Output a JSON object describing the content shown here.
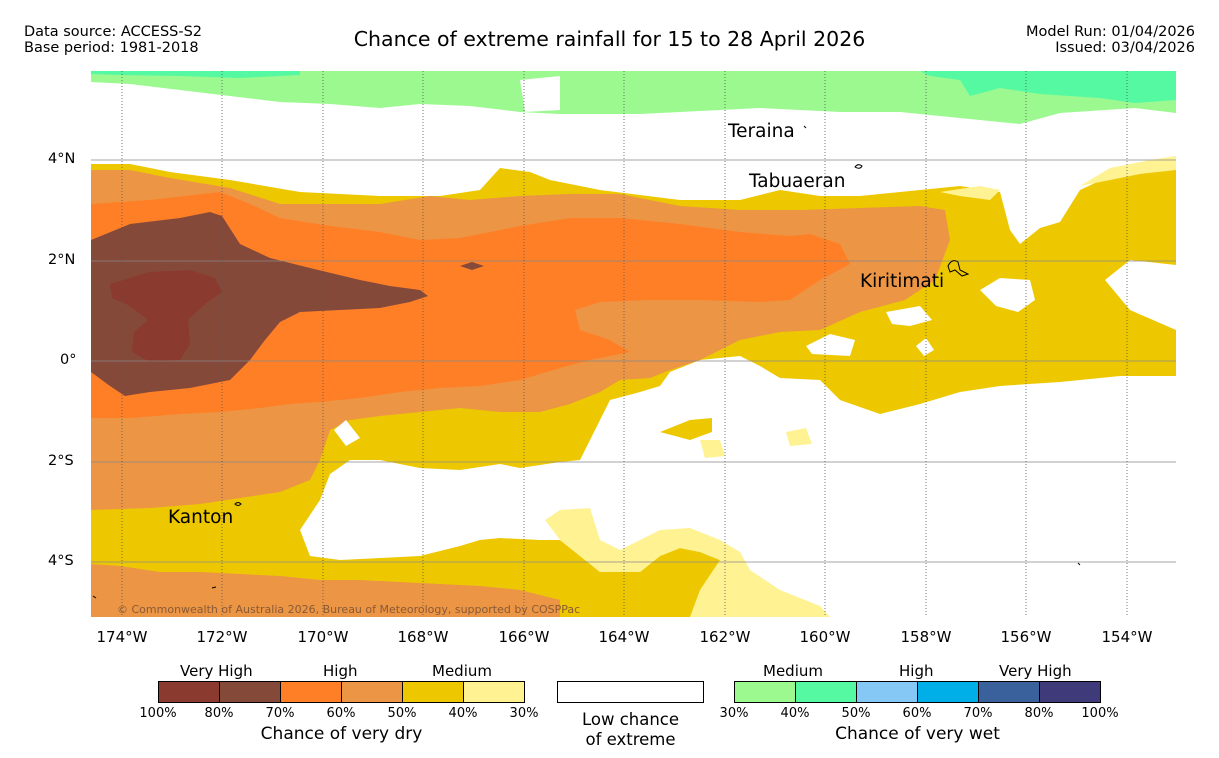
{
  "header": {
    "data_source": "Data source: ACCESS-S2",
    "base_period": "Base period: 1981-2018",
    "title": "Chance of extreme rainfall for 15 to 28 April 2026",
    "model_run": "Model Run: 01/04/2026",
    "issued": "Issued: 03/04/2026"
  },
  "map": {
    "lat_labels": [
      "4°N",
      "2°N",
      "0°",
      "2°S",
      "4°S"
    ],
    "lon_labels": [
      "174°W",
      "172°W",
      "170°W",
      "168°W",
      "166°W",
      "164°W",
      "162°W",
      "160°W",
      "158°W",
      "156°W",
      "154°W"
    ],
    "places": {
      "teraina": "Teraina",
      "tabuaeran": "Tabuaeran",
      "kiritimati": "Kiritimati",
      "kanton": "Kanton"
    },
    "copyright": "© Commonwealth of Australia 2026, Bureau of Meteorology, supported by COSPPac"
  },
  "legend": {
    "dry": {
      "groups": [
        "Very High",
        "High",
        "Medium"
      ],
      "ticks": [
        "100%",
        "80%",
        "70%",
        "60%",
        "50%",
        "40%",
        "30%"
      ],
      "colors": [
        "#8b3a2f",
        "#85493a",
        "#ff7f27",
        "#ec9545",
        "#edc800",
        "#fff293"
      ],
      "caption": "Chance of very dry"
    },
    "low": {
      "line1": "Low chance",
      "line2": "of extreme"
    },
    "wet": {
      "groups": [
        "Medium",
        "High",
        "Very High"
      ],
      "ticks": [
        "30%",
        "40%",
        "50%",
        "60%",
        "70%",
        "80%",
        "100%"
      ],
      "colors": [
        "#9bf990",
        "#55f9a2",
        "#85c8f5",
        "#00aee8",
        "#3a619b",
        "#3f3a7a"
      ],
      "caption": "Chance of very wet"
    }
  },
  "colors": {
    "very_dry_80_100": "#8b3a2f",
    "very_dry_70_80": "#85493a",
    "dry_60_70": "#ff7f27",
    "dry_50_60": "#ec9545",
    "dry_40_50": "#edc800",
    "dry_30_40": "#fff293",
    "wet_30_40": "#9bf990",
    "wet_40_50": "#55f9a2"
  }
}
